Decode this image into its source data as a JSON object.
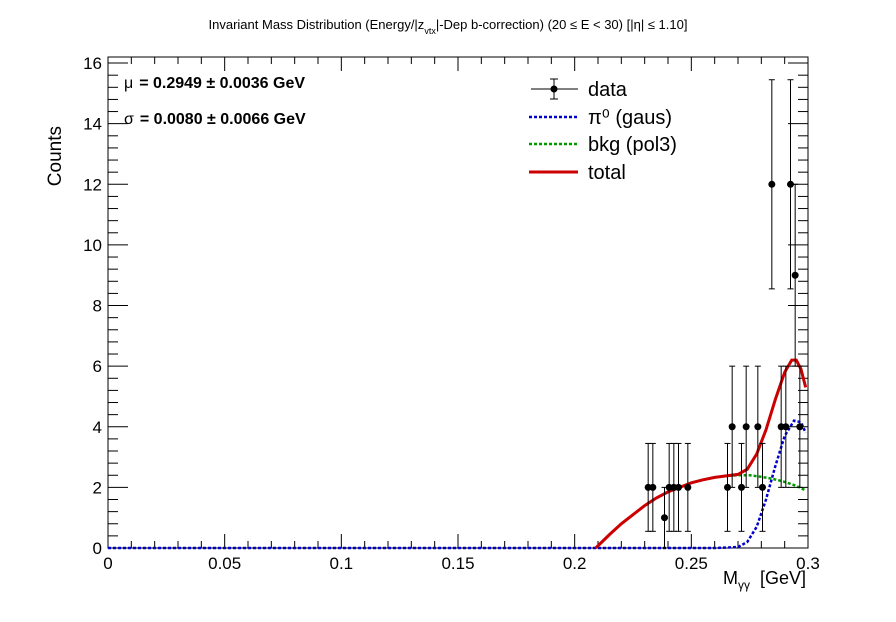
{
  "chart_data": {
    "type": "scatter",
    "title": {
      "main": "Invariant Mass Distribution (Energy/|z",
      "sub": "vtx",
      "rest": "|-Dep b-correction)   (20 ≤ E < 30)   [|η| ≤ 1.10]"
    },
    "xlabel": {
      "main": "M",
      "sub": "γγ",
      "unit": "  [GeV]"
    },
    "ylabel": "Counts",
    "xlim": [
      0,
      0.3
    ],
    "ylim": [
      0,
      16.2
    ],
    "x_ticks": [
      {
        "v": 0,
        "label": "0"
      },
      {
        "v": 0.05,
        "label": "0.05"
      },
      {
        "v": 0.1,
        "label": "0.1"
      },
      {
        "v": 0.15,
        "label": "0.15"
      },
      {
        "v": 0.2,
        "label": "0.2"
      },
      {
        "v": 0.25,
        "label": "0.25"
      },
      {
        "v": 0.3,
        "label": "0.3"
      }
    ],
    "y_ticks": [
      {
        "v": 0,
        "label": "0"
      },
      {
        "v": 2,
        "label": "2"
      },
      {
        "v": 4,
        "label": "4"
      },
      {
        "v": 6,
        "label": "6"
      },
      {
        "v": 8,
        "label": "8"
      },
      {
        "v": 10,
        "label": "10"
      },
      {
        "v": 12,
        "label": "12"
      },
      {
        "v": 14,
        "label": "14"
      },
      {
        "v": 16,
        "label": "16"
      }
    ],
    "fit_params": {
      "mu": {
        "symbol": "μ",
        "text": "= 0.2949 ± 0.0036 GeV"
      },
      "sigma": {
        "symbol": "σ",
        "text": "= 0.0080 ± 0.0066 GeV"
      }
    },
    "legend": [
      {
        "key": "data",
        "label": "data",
        "style": "marker"
      },
      {
        "key": "gaus",
        "label": "π⁰ (gaus)",
        "style": "dotted-blue"
      },
      {
        "key": "bkg",
        "label": "bkg (pol3)",
        "style": "dotted-green"
      },
      {
        "key": "total",
        "label": "total",
        "style": "solid-red"
      }
    ],
    "colors": {
      "data": "#000000",
      "gaus": "#0000cc",
      "bkg": "#009900",
      "total": "#cc0000"
    },
    "data_points": [
      {
        "x": 0.2315,
        "y": 2,
        "err": 1.45
      },
      {
        "x": 0.2335,
        "y": 2,
        "err": 1.45
      },
      {
        "x": 0.2385,
        "y": 1,
        "err": 1.0
      },
      {
        "x": 0.2405,
        "y": 2,
        "err": 1.45
      },
      {
        "x": 0.2425,
        "y": 2,
        "err": 1.45
      },
      {
        "x": 0.2445,
        "y": 2,
        "err": 1.45
      },
      {
        "x": 0.2485,
        "y": 2,
        "err": 1.45
      },
      {
        "x": 0.2655,
        "y": 2,
        "err": 1.45
      },
      {
        "x": 0.2675,
        "y": 4,
        "err": 2.0
      },
      {
        "x": 0.2715,
        "y": 2,
        "err": 1.45
      },
      {
        "x": 0.2735,
        "y": 4,
        "err": 2.0
      },
      {
        "x": 0.2785,
        "y": 4,
        "err": 2.0
      },
      {
        "x": 0.2805,
        "y": 2,
        "err": 1.45
      },
      {
        "x": 0.2845,
        "y": 12,
        "err": 3.45
      },
      {
        "x": 0.2885,
        "y": 4,
        "err": 2.0
      },
      {
        "x": 0.2905,
        "y": 4,
        "err": 2.0
      },
      {
        "x": 0.2925,
        "y": 12,
        "err": 3.45
      },
      {
        "x": 0.2945,
        "y": 9,
        "err": 3.0
      },
      {
        "x": 0.2965,
        "y": 4,
        "err": 2.0
      }
    ],
    "bkg_curve": [
      [
        0.209,
        0.0
      ],
      [
        0.215,
        0.45
      ],
      [
        0.22,
        0.8
      ],
      [
        0.225,
        1.1
      ],
      [
        0.23,
        1.4
      ],
      [
        0.235,
        1.65
      ],
      [
        0.24,
        1.85
      ],
      [
        0.245,
        2.0
      ],
      [
        0.25,
        2.15
      ],
      [
        0.255,
        2.25
      ],
      [
        0.26,
        2.33
      ],
      [
        0.265,
        2.38
      ],
      [
        0.27,
        2.4
      ],
      [
        0.275,
        2.4
      ],
      [
        0.28,
        2.35
      ],
      [
        0.285,
        2.28
      ],
      [
        0.29,
        2.18
      ],
      [
        0.295,
        2.05
      ],
      [
        0.299,
        1.9
      ]
    ],
    "gaus_curve": [
      [
        0.0,
        0.0
      ],
      [
        0.26,
        0.0
      ],
      [
        0.27,
        0.03
      ],
      [
        0.274,
        0.2
      ],
      [
        0.278,
        0.7
      ],
      [
        0.282,
        1.6
      ],
      [
        0.286,
        2.7
      ],
      [
        0.29,
        3.7
      ],
      [
        0.294,
        4.2
      ],
      [
        0.297,
        4.15
      ],
      [
        0.299,
        3.8
      ]
    ],
    "total_curve": [
      [
        0.209,
        0.0
      ],
      [
        0.215,
        0.45
      ],
      [
        0.22,
        0.8
      ],
      [
        0.225,
        1.1
      ],
      [
        0.23,
        1.4
      ],
      [
        0.235,
        1.65
      ],
      [
        0.24,
        1.85
      ],
      [
        0.245,
        2.0
      ],
      [
        0.25,
        2.15
      ],
      [
        0.255,
        2.25
      ],
      [
        0.26,
        2.33
      ],
      [
        0.265,
        2.38
      ],
      [
        0.27,
        2.43
      ],
      [
        0.274,
        2.6
      ],
      [
        0.278,
        3.1
      ],
      [
        0.282,
        3.9
      ],
      [
        0.286,
        4.9
      ],
      [
        0.29,
        5.8
      ],
      [
        0.293,
        6.2
      ],
      [
        0.295,
        6.2
      ],
      [
        0.297,
        5.9
      ],
      [
        0.299,
        5.3
      ]
    ]
  }
}
